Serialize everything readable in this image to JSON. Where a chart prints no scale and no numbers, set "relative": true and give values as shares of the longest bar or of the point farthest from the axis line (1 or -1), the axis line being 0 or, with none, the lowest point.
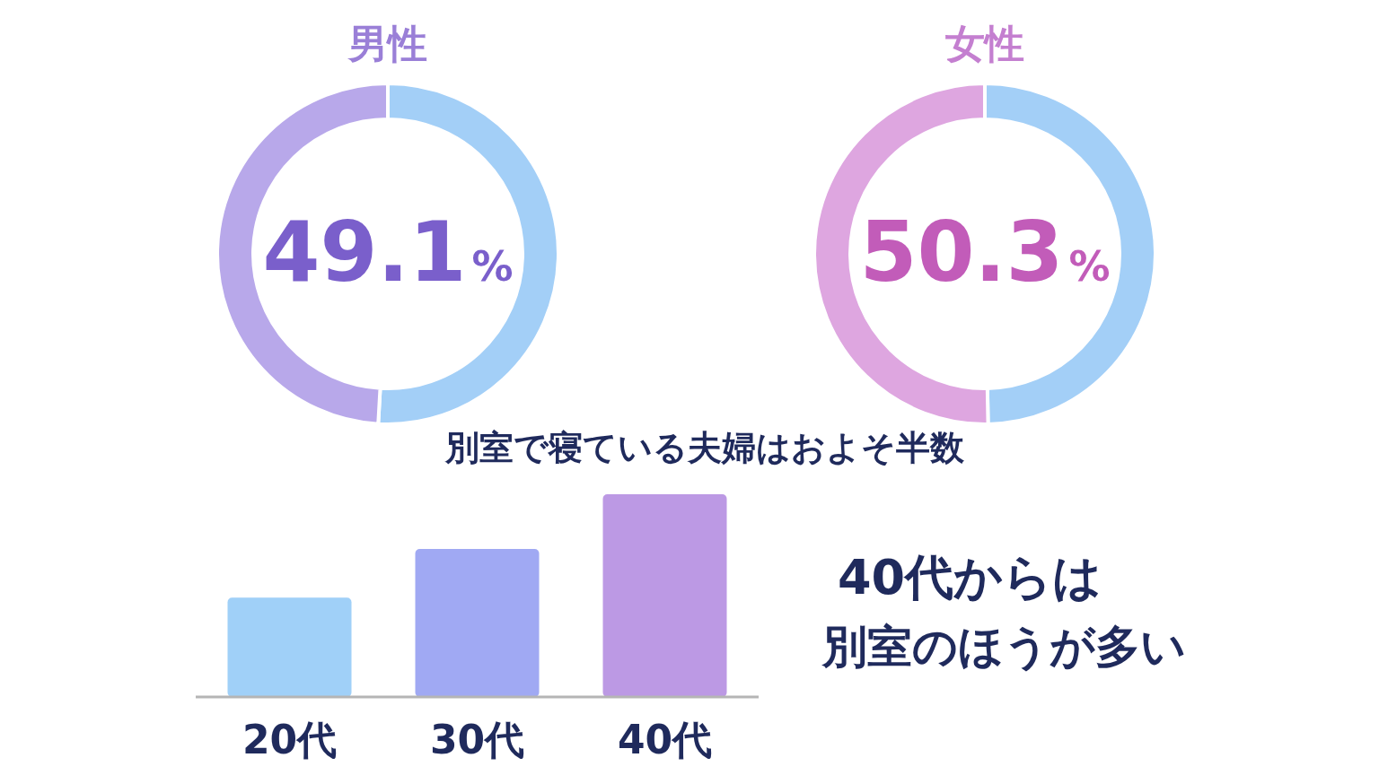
{
  "chart_data": [
    {
      "type": "donut",
      "title": "男性",
      "categories": [
        null,
        null
      ],
      "values": [
        50.9,
        49.1
      ],
      "colors": [
        "#a3cff7",
        "#b8a8ea"
      ],
      "value_labels": [
        null,
        "49.1%"
      ]
    },
    {
      "type": "donut",
      "title": "女性",
      "categories": [
        null,
        null
      ],
      "values": [
        49.7,
        50.3
      ],
      "colors": [
        "#a3cff7",
        "#dea6e0"
      ],
      "value_labels": [
        null,
        "50.3%"
      ]
    },
    {
      "type": "bar",
      "title": "別室で寝ている夫婦はおよそ半数",
      "relative": true,
      "categories": [
        "20代",
        "30代",
        "40代"
      ],
      "values": [
        0.49,
        0.73,
        1
      ],
      "colors": [
        "#a0d0f8",
        "#a0a9f3",
        "#bc99e4"
      ],
      "annotations": [
        "40代からは",
        "別室のほうが多い"
      ]
    }
  ]
}
